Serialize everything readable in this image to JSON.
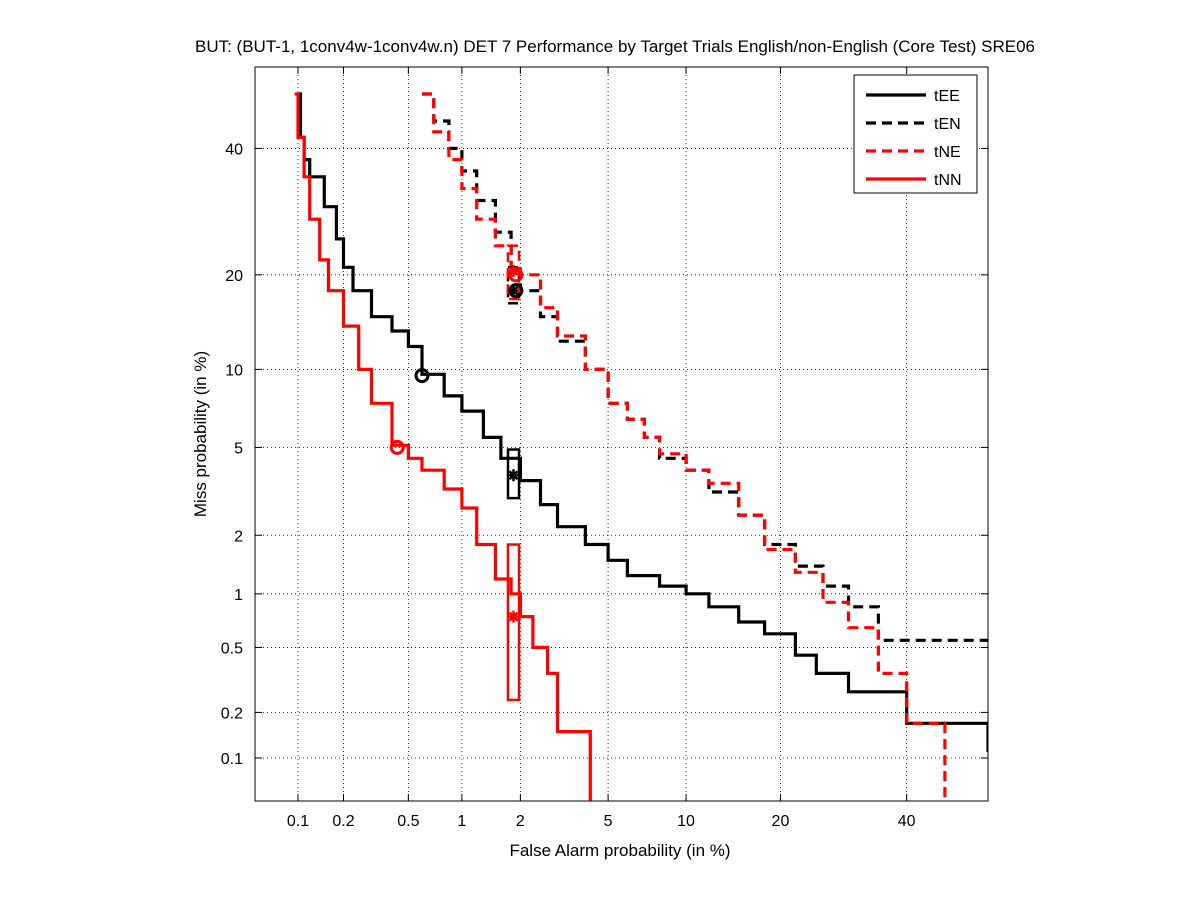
{
  "chart_data": {
    "type": "line",
    "title": "BUT: (BUT-1, 1conv4w-1conv4w.n) DET 7 Performance by Target Trials English/non-English (Core Test) SRE06",
    "xlabel": "False Alarm probability (in %)",
    "ylabel": "Miss probability (in %)",
    "scale": "normal-deviate (DET)",
    "xlim": [
      0.05,
      55
    ],
    "ylim": [
      0.05,
      55
    ],
    "x_ticks": [
      0.1,
      0.2,
      0.5,
      1,
      2,
      5,
      10,
      20,
      40
    ],
    "x_tick_labels": [
      "0.1",
      "0.2",
      "0.5",
      "1",
      "2",
      "5",
      "10",
      "20",
      "40"
    ],
    "y_ticks": [
      0.1,
      0.2,
      0.5,
      1,
      2,
      5,
      10,
      20,
      40
    ],
    "y_tick_labels": [
      "0.1",
      "0.2",
      "0.5",
      "1",
      "2",
      "5",
      "10",
      "20",
      "40"
    ],
    "grid": true,
    "legend_position": "top-right",
    "series": [
      {
        "name": "tEE",
        "color": "#000000",
        "style": "solid",
        "x": [
          0.1,
          0.104,
          0.11,
          0.12,
          0.15,
          0.18,
          0.2,
          0.23,
          0.3,
          0.4,
          0.5,
          0.6,
          0.8,
          1.0,
          1.3,
          1.6,
          2.0,
          2.5,
          3.0,
          4.0,
          5.0,
          6.0,
          8.0,
          10.0,
          12.0,
          15.0,
          18.0,
          22.0,
          25.0,
          30.0,
          40.0,
          55.0
        ],
        "y": [
          50,
          42,
          38,
          35,
          30,
          25,
          21,
          18,
          15,
          13.5,
          12,
          9.6,
          8,
          7,
          5.5,
          4.5,
          3.6,
          2.8,
          2.2,
          1.8,
          1.5,
          1.25,
          1.1,
          1.0,
          0.85,
          0.7,
          0.6,
          0.45,
          0.35,
          0.27,
          0.17,
          0.11
        ]
      },
      {
        "name": "tEN",
        "color": "#000000",
        "style": "dashed",
        "x": [
          0.6,
          0.7,
          0.85,
          1.0,
          1.2,
          1.5,
          1.8,
          2.0,
          2.5,
          3.0,
          4.0,
          5.0,
          6.0,
          7.0,
          8.0,
          10.0,
          12.0,
          15.0,
          18.0,
          22.0,
          26.0,
          30.0,
          35.0,
          55.0
        ],
        "y": [
          50,
          45,
          40,
          36,
          31,
          26,
          21,
          18,
          15,
          12.5,
          10,
          7.5,
          6.5,
          5.5,
          4.5,
          4.0,
          3.2,
          2.5,
          1.8,
          1.4,
          1.1,
          0.85,
          0.55,
          0.55
        ]
      },
      {
        "name": "tNE",
        "color": "#ff0000",
        "style": "dashed",
        "x": [
          0.6,
          0.7,
          0.85,
          1.0,
          1.2,
          1.5,
          1.8,
          2.0,
          2.5,
          3.0,
          4.0,
          5.0,
          6.0,
          7.0,
          8.0,
          10.0,
          12.0,
          15.0,
          18.0,
          22.0,
          26.0,
          30.0,
          35.0,
          40.0,
          47.0,
          47.0
        ],
        "y": [
          50,
          43,
          38,
          33,
          28,
          24,
          21,
          20,
          16,
          13,
          10,
          7.5,
          6.5,
          5.5,
          4.7,
          4.0,
          3.5,
          2.5,
          1.7,
          1.3,
          0.9,
          0.65,
          0.35,
          0.17,
          0.17,
          0.05
        ]
      },
      {
        "name": "tNN",
        "color": "#ff0000",
        "style": "solid",
        "x": [
          0.095,
          0.1,
          0.11,
          0.12,
          0.14,
          0.16,
          0.2,
          0.25,
          0.3,
          0.4,
          0.5,
          0.6,
          0.8,
          1.0,
          1.2,
          1.5,
          1.8,
          2.0,
          2.3,
          2.7,
          3.0,
          3.5,
          4.2,
          4.2
        ],
        "y": [
          50,
          42,
          35,
          28,
          22,
          18,
          14,
          10,
          7.5,
          5.1,
          4.5,
          4.0,
          3.3,
          2.7,
          1.8,
          1.2,
          1.0,
          0.75,
          0.5,
          0.35,
          0.15,
          0.15,
          0.15,
          0.05
        ]
      }
    ],
    "min_dcf_points": [
      {
        "series": "tEE",
        "x": 0.6,
        "y": 9.5
      },
      {
        "series": "tEN",
        "x": 1.9,
        "y": 18
      },
      {
        "series": "tNE",
        "x": 1.9,
        "y": 20
      },
      {
        "series": "tNN",
        "x": 0.43,
        "y": 5.0
      }
    ],
    "act_dcf_points": [
      {
        "series": "tEE",
        "x": 1.85,
        "y": 3.8,
        "y_low": 3.0,
        "y_high": 4.9
      },
      {
        "series": "tEN",
        "x": 1.85,
        "y": 18,
        "y_low": 16.5,
        "y_high": 21
      },
      {
        "series": "tNE",
        "x": 1.85,
        "y": 20.5,
        "y_low": 17,
        "y_high": 24
      },
      {
        "series": "tNN",
        "x": 1.85,
        "y": 0.75,
        "y_low": 0.24,
        "y_high": 1.8
      }
    ]
  }
}
